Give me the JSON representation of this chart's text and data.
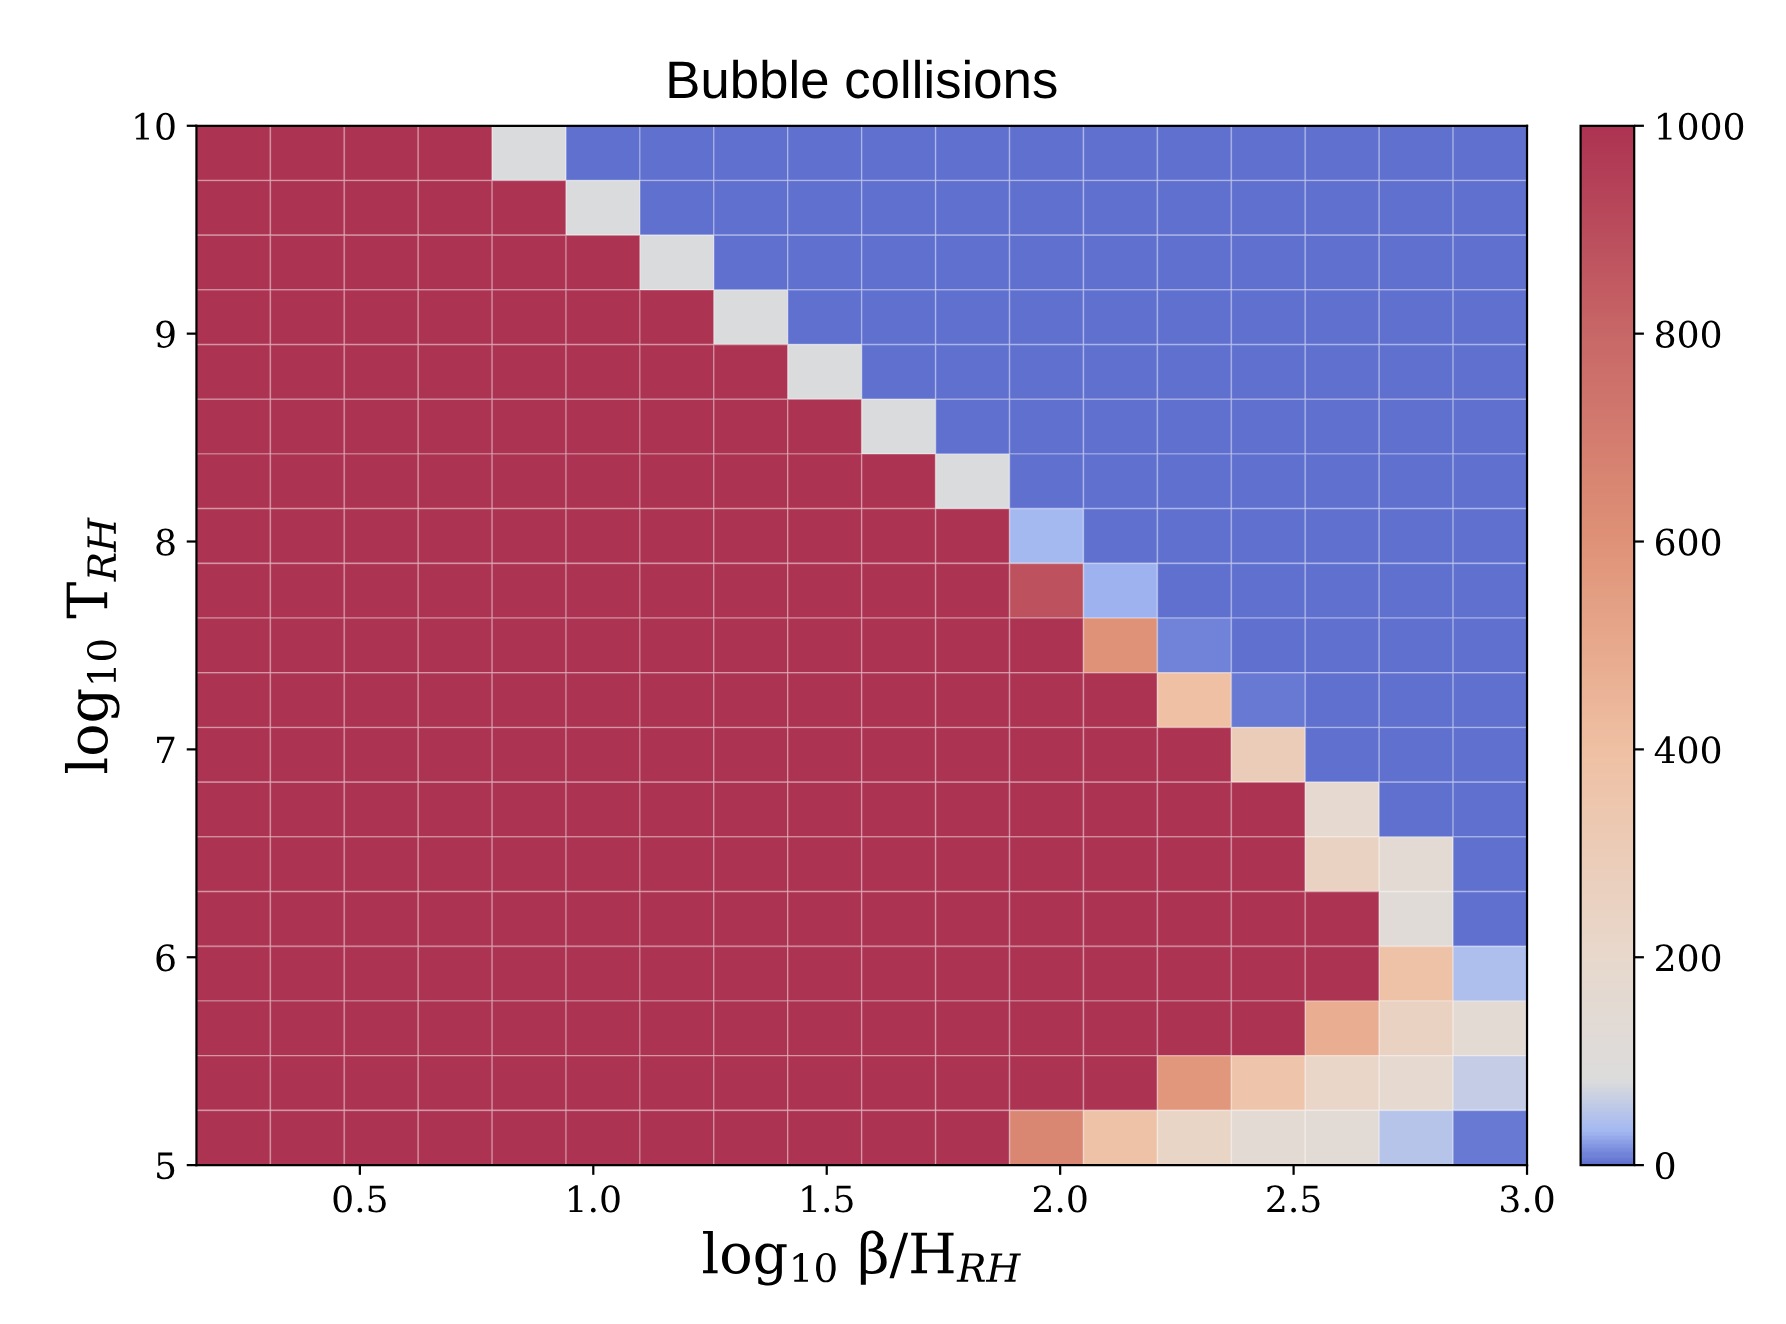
{
  "chart_data": {
    "type": "heatmap",
    "title": "Bubble collisions",
    "xlabel": "log$_{10}$ β/H$_{RH}$",
    "ylabel": "log$_{10}$ T$_{RH}$",
    "xlim": [
      0.15,
      3.0
    ],
    "xticks": [
      0.5,
      {
        "value": 1,
        "label": "1.0"
      },
      1.5,
      {
        "value": 2,
        "label": "2.0"
      },
      2.5,
      {
        "value": 3,
        "label": "3.0"
      }
    ],
    "ylim": [
      5,
      10
    ],
    "yticks": [
      5,
      6,
      7,
      8,
      9,
      10
    ],
    "clim": [
      0,
      1000
    ],
    "cticks": [
      0,
      200,
      400,
      600,
      800,
      1000
    ],
    "cells": [
      [
        1000,
        1000,
        1000,
        1000,
        80,
        0,
        0,
        0,
        0,
        0,
        0,
        0,
        0,
        0,
        0,
        0,
        0,
        0
      ],
      [
        1000,
        1000,
        1000,
        1000,
        1000,
        80,
        0,
        0,
        0,
        0,
        0,
        0,
        0,
        0,
        0,
        0,
        0,
        0
      ],
      [
        1000,
        1000,
        1000,
        1000,
        1000,
        1000,
        80,
        0,
        0,
        0,
        0,
        0,
        0,
        0,
        0,
        0,
        0,
        0
      ],
      [
        1000,
        1000,
        1000,
        1000,
        1000,
        1000,
        1000,
        80,
        0,
        0,
        0,
        0,
        0,
        0,
        0,
        0,
        0,
        0
      ],
      [
        1000,
        1000,
        1000,
        1000,
        1000,
        1000,
        1000,
        1000,
        80,
        0,
        0,
        0,
        0,
        0,
        0,
        0,
        0,
        0
      ],
      [
        1000,
        1000,
        1000,
        1000,
        1000,
        1000,
        1000,
        1000,
        1000,
        80,
        0,
        0,
        0,
        0,
        0,
        0,
        0,
        0
      ],
      [
        1000,
        1000,
        1000,
        1000,
        1000,
        1000,
        1000,
        1000,
        1000,
        1000,
        80,
        0,
        0,
        0,
        0,
        0,
        0,
        0
      ],
      [
        1000,
        1000,
        1000,
        1000,
        1000,
        1000,
        1000,
        1000,
        1000,
        1000,
        1000,
        35,
        0,
        0,
        0,
        0,
        0,
        0
      ],
      [
        1000,
        1000,
        1000,
        1000,
        1000,
        1000,
        1000,
        1000,
        1000,
        1000,
        1000,
        880,
        30,
        0,
        0,
        0,
        0,
        0
      ],
      [
        1000,
        1000,
        1000,
        1000,
        1000,
        1000,
        1000,
        1000,
        1000,
        1000,
        1000,
        1000,
        600,
        10,
        0,
        0,
        0,
        0
      ],
      [
        1000,
        1000,
        1000,
        1000,
        1000,
        1000,
        1000,
        1000,
        1000,
        1000,
        1000,
        1000,
        1000,
        400,
        5,
        0,
        0,
        0
      ],
      [
        1000,
        1000,
        1000,
        1000,
        1000,
        1000,
        1000,
        1000,
        1000,
        1000,
        1000,
        1000,
        1000,
        1000,
        300,
        0,
        0,
        0
      ],
      [
        1000,
        1000,
        1000,
        1000,
        1000,
        1000,
        1000,
        1000,
        1000,
        1000,
        1000,
        1000,
        1000,
        1000,
        1000,
        180,
        0,
        0
      ],
      [
        1000,
        1000,
        1000,
        1000,
        1000,
        1000,
        1000,
        1000,
        1000,
        1000,
        1000,
        1000,
        1000,
        1000,
        1000,
        250,
        150,
        0
      ],
      [
        1000,
        1000,
        1000,
        1000,
        1000,
        1000,
        1000,
        1000,
        1000,
        1000,
        1000,
        1000,
        1000,
        1000,
        1000,
        1000,
        120,
        0
      ],
      [
        1000,
        1000,
        1000,
        1000,
        1000,
        1000,
        1000,
        1000,
        1000,
        1000,
        1000,
        1000,
        1000,
        1000,
        1000,
        1000,
        380,
        40
      ],
      [
        1000,
        1000,
        1000,
        1000,
        1000,
        1000,
        1000,
        1000,
        1000,
        1000,
        1000,
        1000,
        1000,
        1000,
        1000,
        480,
        250,
        150
      ],
      [
        1000,
        1000,
        1000,
        1000,
        1000,
        1000,
        1000,
        1000,
        1000,
        1000,
        1000,
        1000,
        1000,
        580,
        360,
        220,
        180,
        60
      ],
      [
        1000,
        1000,
        1000,
        1000,
        1000,
        1000,
        1000,
        1000,
        1000,
        1000,
        1000,
        650,
        380,
        230,
        150,
        140,
        50,
        5
      ]
    ]
  }
}
